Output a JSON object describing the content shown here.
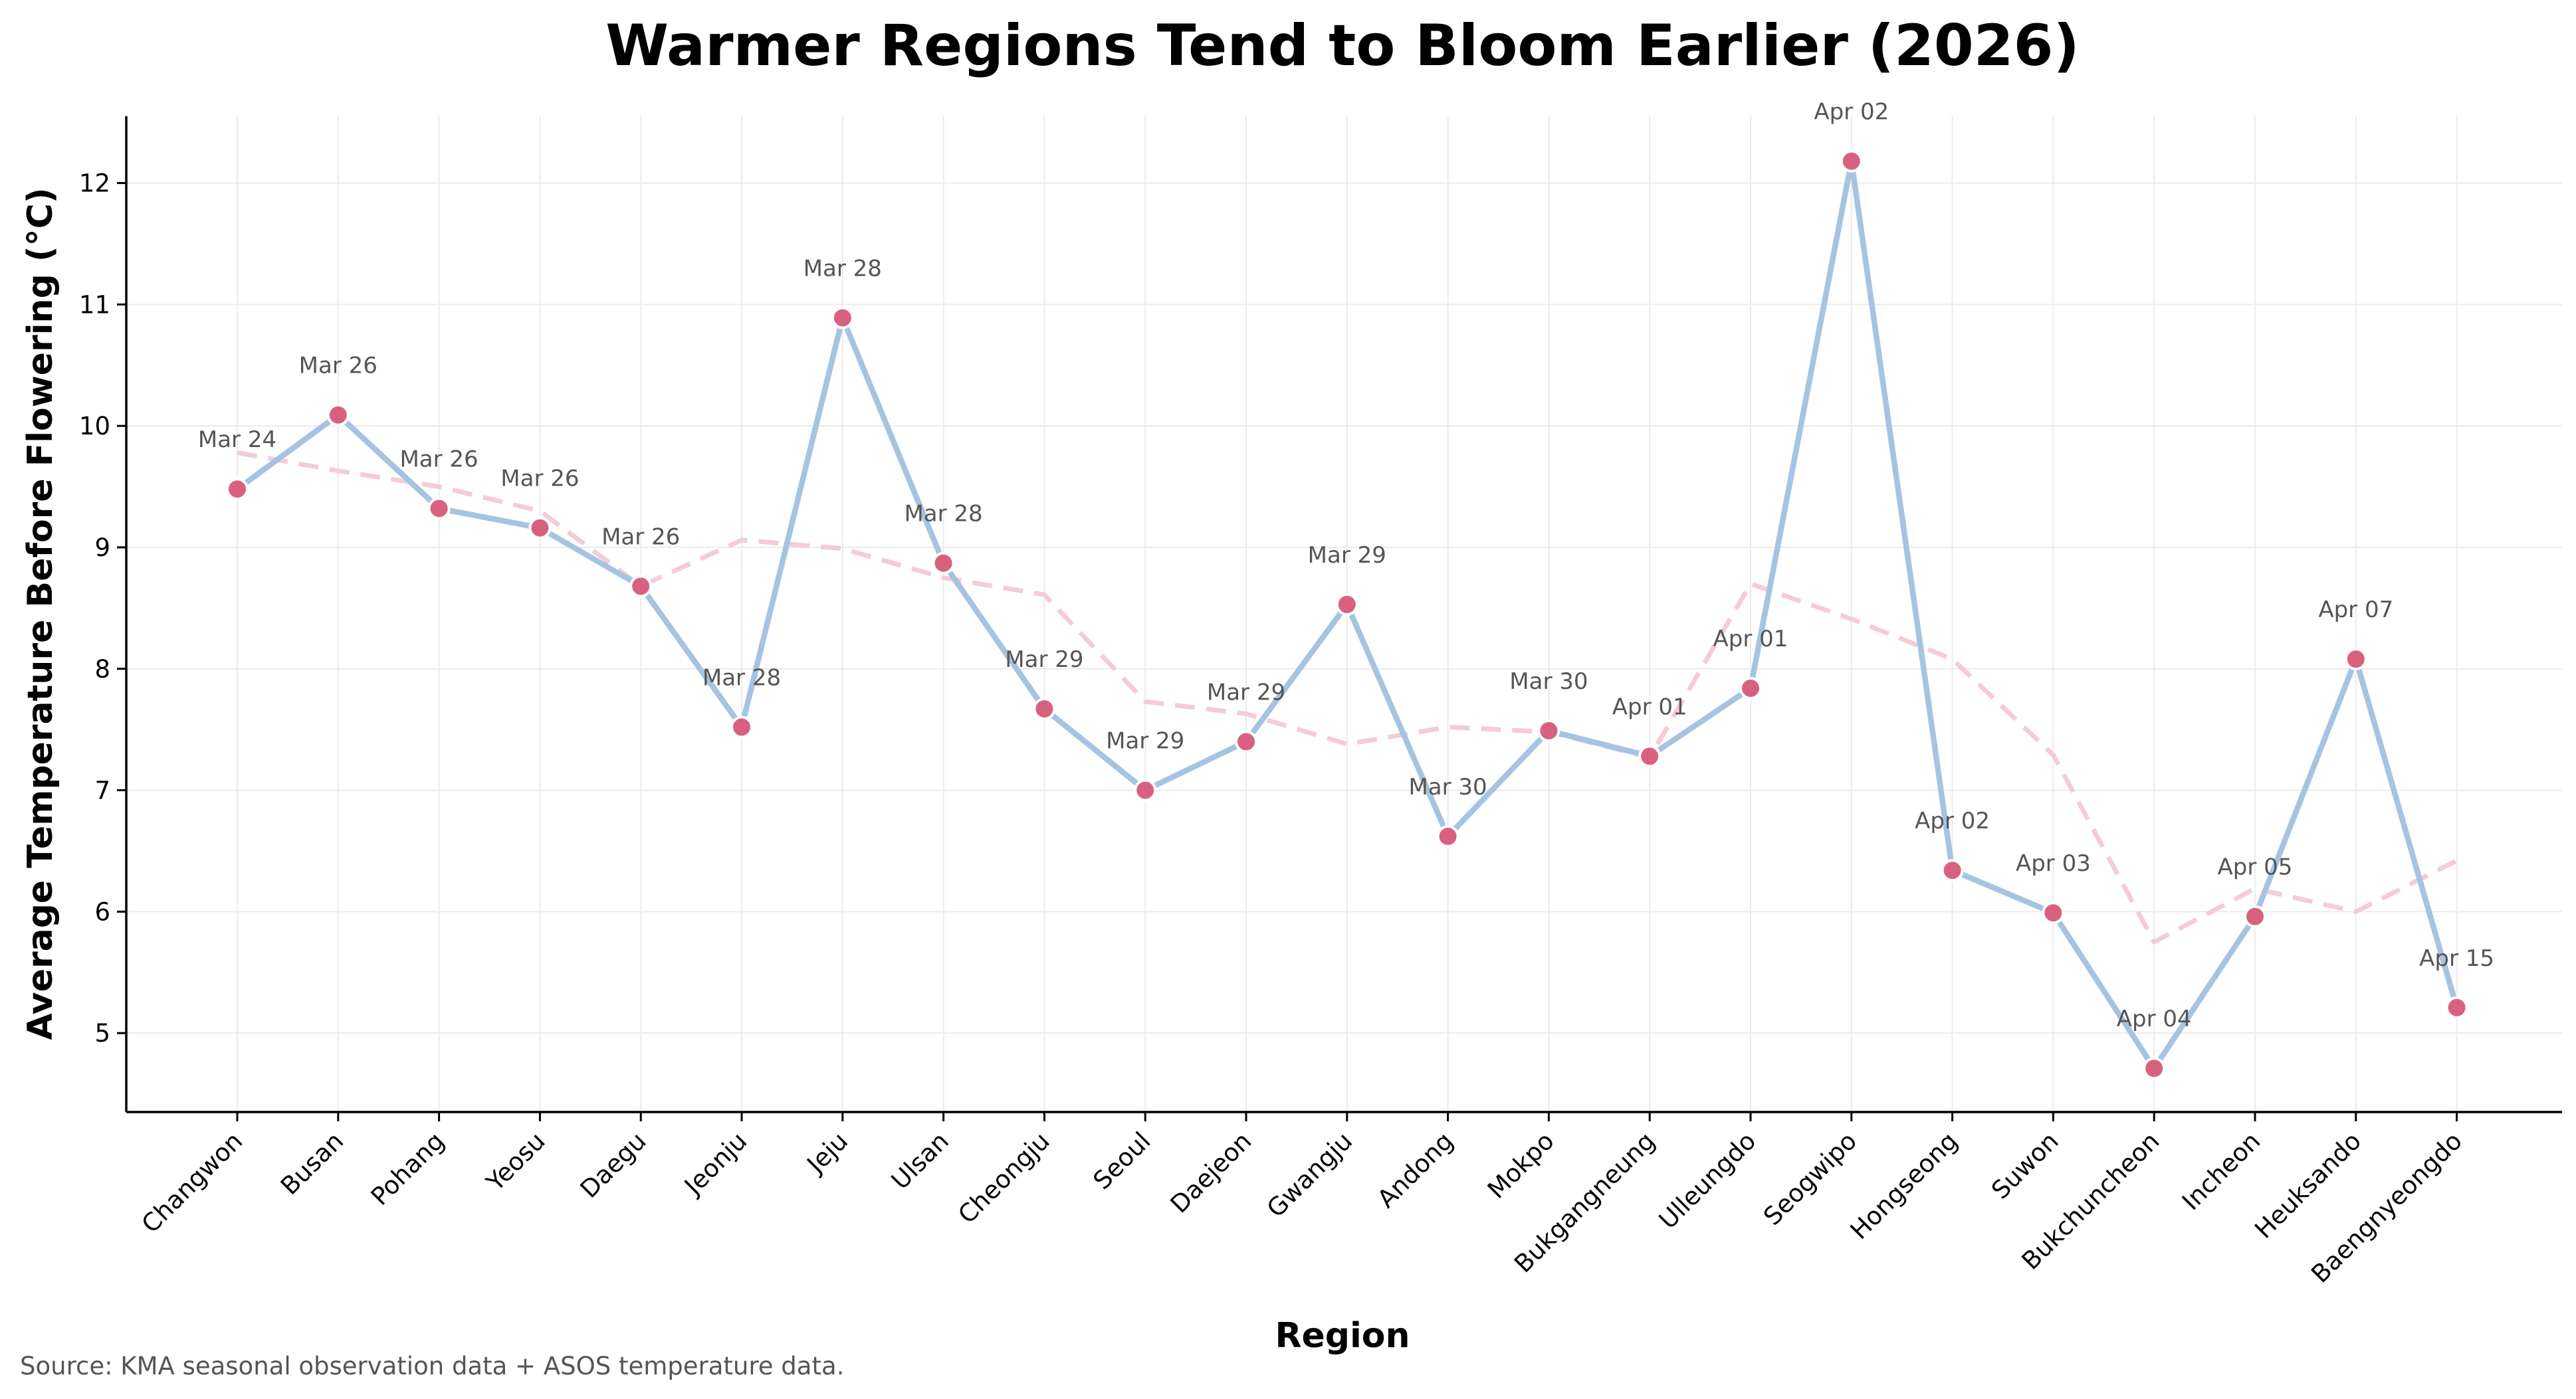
{
  "chart_data": {
    "type": "line",
    "title": "Warmer Regions Tend to Bloom Earlier (2026)",
    "xlabel": "Region",
    "ylabel": "Average Temperature Before Flowering (°C)",
    "source": "Source: KMA seasonal observation data + ASOS temperature data.",
    "ylim": [
      4.35,
      12.55
    ],
    "yticks": [
      5,
      6,
      7,
      8,
      9,
      10,
      11,
      12
    ],
    "grid": true,
    "legend": "none",
    "colors": {
      "line": "#a4c4e2",
      "marker": "#d9617f",
      "marker_edge": "#ffffff",
      "trend": "#f5cbd7"
    },
    "categories": [
      "Changwon",
      "Busan",
      "Pohang",
      "Yeosu",
      "Daegu",
      "Jeonju",
      "Jeju",
      "Ulsan",
      "Cheongju",
      "Seoul",
      "Daejeon",
      "Gwangju",
      "Andong",
      "Mokpo",
      "Bukgangneung",
      "Ulleungdo",
      "Seogwipo",
      "Hongseong",
      "Suwon",
      "Bukchuncheon",
      "Incheon",
      "Heuksando",
      "Baengnyeongdo"
    ],
    "series": [
      {
        "values": [
          9.48,
          10.09,
          9.32,
          9.16,
          8.68,
          7.52,
          10.89,
          8.87,
          7.67,
          7.0,
          7.4,
          8.53,
          6.62,
          7.49,
          7.28,
          7.84,
          12.18,
          6.34,
          5.99,
          4.71,
          5.96,
          8.08,
          5.21
        ],
        "labels": [
          "Mar 24",
          "Mar 26",
          "Mar 26",
          "Mar 26",
          "Mar 26",
          "Mar 28",
          "Mar 28",
          "Mar 28",
          "Mar 29",
          "Mar 29",
          "Mar 29",
          "Mar 29",
          "Mar 30",
          "Mar 30",
          "Apr 01",
          "Apr 01",
          "Apr 02",
          "Apr 02",
          "Apr 03",
          "Apr 04",
          "Apr 05",
          "Apr 07",
          "Apr 15"
        ]
      },
      {
        "style": "dashed",
        "values": [
          9.78,
          9.63,
          9.5,
          9.3,
          8.68,
          9.06,
          8.99,
          8.75,
          8.61,
          7.73,
          7.63,
          7.38,
          7.52,
          7.48,
          7.27,
          8.7,
          8.41,
          8.08,
          7.29,
          5.75,
          6.19,
          6.0,
          6.42
        ]
      }
    ]
  }
}
